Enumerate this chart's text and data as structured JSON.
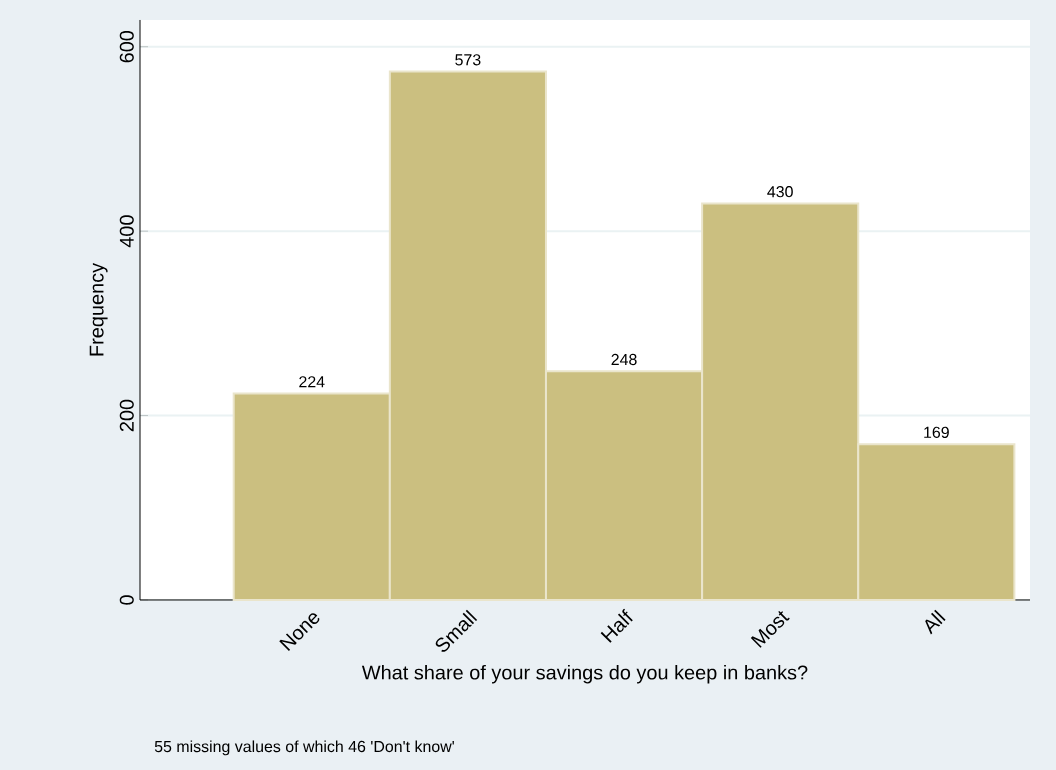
{
  "chart_data": {
    "type": "bar",
    "xlabel": "What share of your savings do you keep in banks?",
    "ylabel": "Frequency",
    "categories": [
      "None",
      "Small",
      "Half",
      "Most",
      "All"
    ],
    "values": [
      224,
      573,
      248,
      430,
      169
    ],
    "color": "#cbbf80",
    "ylim": [
      0,
      629
    ],
    "yticks": [
      0,
      200,
      400,
      600
    ],
    "grid": "y",
    "data_labels": true,
    "annotations": [
      "55 missing values of which 46 'Don't know'"
    ]
  }
}
